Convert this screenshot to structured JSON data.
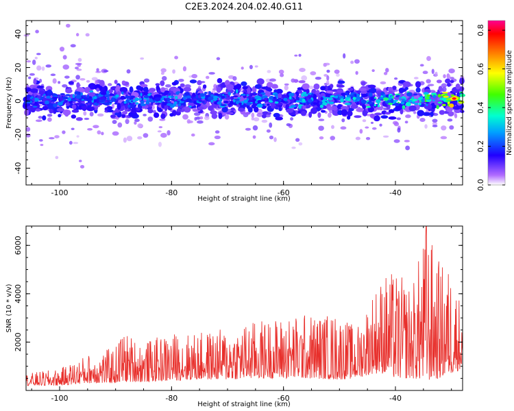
{
  "figure": {
    "title": "C2E3.2024.204.02.40.G11"
  },
  "chart_data": [
    {
      "type": "heatmap",
      "xlabel": "Height of straight line (km)",
      "ylabel": "Frequency (Hz)",
      "xlim": [
        -106,
        -28
      ],
      "ylim": [
        -50,
        48
      ],
      "x_ticks": [
        -100,
        -80,
        -60,
        -40
      ],
      "y_ticks": [
        -40,
        -20,
        0,
        20,
        40
      ],
      "x_tick_labels": [
        "-100",
        "-80",
        "-60",
        "-40"
      ],
      "y_tick_labels": [
        "-40",
        "-20",
        "0",
        "20",
        "40"
      ],
      "colorbar": {
        "label": "Normalized spectral amplitude",
        "range": [
          0,
          0.85
        ],
        "ticks": [
          0.0,
          0.2,
          0.4,
          0.6,
          0.8
        ],
        "tick_labels": [
          "0.0",
          "0.2",
          "0.4",
          "0.6",
          "0.8"
        ],
        "colors": [
          "#ffffff",
          "#8a00ff",
          "#0000ff",
          "#00ffff",
          "#00ff00",
          "#ffff00",
          "#ff8000",
          "#ff0000",
          "#ff00a0"
        ]
      },
      "band": {
        "center_frequency_hz": 1,
        "core_halfwidth_hz": 5,
        "faint_halfwidth_hz": 12,
        "amplitude_trend": [
          [
            -106,
            0.28
          ],
          [
            -100,
            0.3
          ],
          [
            -90,
            0.32
          ],
          [
            -80,
            0.34
          ],
          [
            -70,
            0.33
          ],
          [
            -60,
            0.36
          ],
          [
            -50,
            0.38
          ],
          [
            -42,
            0.45
          ],
          [
            -35,
            0.5
          ],
          [
            -30,
            0.75
          ],
          [
            -28,
            0.6
          ]
        ]
      },
      "grid": false
    },
    {
      "type": "line",
      "xlabel": "Height of straight line (km)",
      "ylabel": "SNR (10 * v/v)",
      "xlim": [
        -106,
        -28
      ],
      "ylim": [
        0,
        6800
      ],
      "x_ticks": [
        -100,
        -80,
        -60,
        -40
      ],
      "y_ticks": [
        2000,
        4000,
        6000
      ],
      "x_tick_labels": [
        "-100",
        "-80",
        "-60",
        "-40"
      ],
      "y_tick_labels": [
        "2000",
        "4000",
        "6000"
      ],
      "series": [
        {
          "color": "#e8302c",
          "envelope": [
            [
              -106,
              200,
              700
            ],
            [
              -100,
              200,
              900
            ],
            [
              -95,
              300,
              1500
            ],
            [
              -90,
              300,
              1800
            ],
            [
              -89,
              350,
              2500
            ],
            [
              -85,
              350,
              2000
            ],
            [
              -80,
              400,
              2400
            ],
            [
              -75,
              450,
              2400
            ],
            [
              -70,
              450,
              2600
            ],
            [
              -65,
              500,
              2900
            ],
            [
              -62,
              500,
              3000
            ],
            [
              -56,
              500,
              3200
            ],
            [
              -50,
              450,
              3200
            ],
            [
              -47,
              500,
              2600
            ],
            [
              -44,
              700,
              4200
            ],
            [
              -42,
              700,
              4900
            ],
            [
              -40,
              500,
              4900
            ],
            [
              -37,
              500,
              4400
            ],
            [
              -34.5,
              400,
              6800
            ],
            [
              -32,
              500,
              5300
            ],
            [
              -30,
              700,
              5100
            ],
            [
              -28,
              900,
              3500
            ]
          ]
        }
      ],
      "grid": false
    }
  ]
}
